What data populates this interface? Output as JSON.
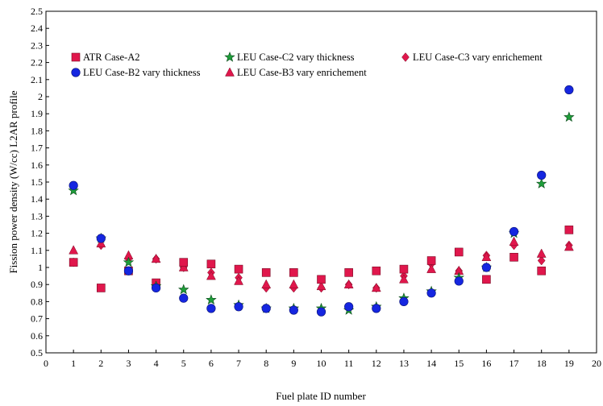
{
  "chart_data": {
    "type": "scatter",
    "title": "",
    "xlabel": "Fuel plate ID number",
    "ylabel": "Fission power density (W/cc) L2AR profile",
    "xlim": [
      0,
      20
    ],
    "ylim": [
      0.5,
      2.5
    ],
    "x_ticks": [
      "0",
      "1",
      "2",
      "3",
      "4",
      "5",
      "6",
      "7",
      "8",
      "9",
      "10",
      "11",
      "12",
      "13",
      "14",
      "15",
      "16",
      "17",
      "18",
      "19",
      "20"
    ],
    "y_ticks": [
      "0.5",
      "0.6",
      "0.7",
      "0.8",
      "0.9",
      "1",
      "1.1",
      "1.2",
      "1.3",
      "1.4",
      "1.5",
      "1.6",
      "1.7",
      "1.8",
      "1.9",
      "2",
      "2.1",
      "2.2",
      "2.3",
      "2.4",
      "2.5"
    ],
    "grid": false,
    "legend_position": "top",
    "x": [
      1,
      2,
      3,
      4,
      5,
      6,
      7,
      8,
      9,
      10,
      11,
      12,
      13,
      14,
      15,
      16,
      17,
      18,
      19
    ],
    "series": [
      {
        "name": "ATR Case-A2",
        "marker": "square",
        "color": "#E0174C",
        "values": [
          1.03,
          0.88,
          0.98,
          0.91,
          1.03,
          1.02,
          0.99,
          0.97,
          0.97,
          0.93,
          0.97,
          0.98,
          0.99,
          1.04,
          1.09,
          0.93,
          1.06,
          0.98,
          1.22
        ]
      },
      {
        "name": "LEU Case-B2 vary thickness",
        "marker": "circle",
        "color": "#1526E0",
        "values": [
          1.48,
          1.17,
          0.98,
          0.88,
          0.82,
          0.76,
          0.77,
          0.76,
          0.75,
          0.74,
          0.77,
          0.76,
          0.8,
          0.85,
          0.92,
          1.0,
          1.21,
          1.54,
          2.04
        ]
      },
      {
        "name": "LEU Case-C2 vary thickness",
        "marker": "star",
        "color": "#1E9E3A",
        "values": [
          1.45,
          1.17,
          1.03,
          0.89,
          0.87,
          0.81,
          0.78,
          0.76,
          0.76,
          0.76,
          0.75,
          0.77,
          0.82,
          0.86,
          0.94,
          1.0,
          1.2,
          1.49,
          1.88
        ]
      },
      {
        "name": "LEU Case-B3 vary enrichement",
        "marker": "triangle",
        "color": "#E0174C",
        "values": [
          1.1,
          1.14,
          1.07,
          1.05,
          1.0,
          0.95,
          0.92,
          0.9,
          0.9,
          0.89,
          0.9,
          0.88,
          0.93,
          0.99,
          0.98,
          1.06,
          1.15,
          1.08,
          1.12
        ]
      },
      {
        "name": "LEU Case-C3 vary enrichement",
        "marker": "diamond",
        "color": "#E0174C",
        "values": [
          1.03,
          1.13,
          1.05,
          1.05,
          1.0,
          0.97,
          0.94,
          0.88,
          0.88,
          0.88,
          0.9,
          0.88,
          0.95,
          1.02,
          0.98,
          1.07,
          1.13,
          1.04,
          1.13
        ]
      }
    ]
  }
}
